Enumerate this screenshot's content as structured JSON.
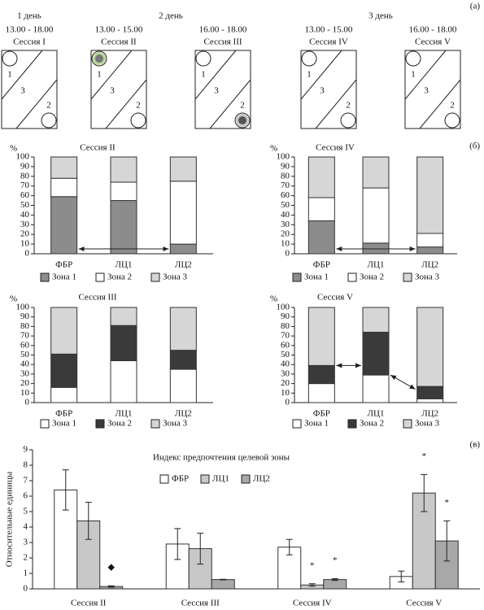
{
  "panel_labels": [
    "(а)",
    "(б)",
    "(в)"
  ],
  "sessions_diagram": {
    "days": [
      "1 день",
      "2 день",
      "3 день"
    ],
    "times": [
      "13.00 - 18.00",
      "13.00 - 15.00",
      "16.00 - 18.00",
      "13.00 - 15.00",
      "16.00 - 18.00"
    ],
    "sessions": [
      "Сессия I",
      "Сессия II",
      "Сессия III",
      "Сессия IV",
      "Сессия V"
    ],
    "zone_labels": [
      "1",
      "3",
      "2"
    ]
  },
  "chart_data": [
    {
      "type": "stacked_bar",
      "title": "Сессия II",
      "y_label": "%",
      "categories": [
        "ФБР",
        "ЛЦ1",
        "ЛЦ2"
      ],
      "series": [
        {
          "name": "Зона 1",
          "color": "#8c8c8c",
          "values": [
            59,
            55,
            10
          ]
        },
        {
          "name": "Зона 2",
          "color": "#ffffff",
          "values": [
            19,
            19,
            65
          ]
        },
        {
          "name": "Зона 3",
          "color": "#d6d6d6",
          "values": [
            22,
            26,
            25
          ]
        }
      ],
      "ylim": [
        0,
        100
      ],
      "yticks": [
        0,
        10,
        20,
        30,
        40,
        50,
        60,
        70,
        80,
        90,
        100
      ]
    },
    {
      "type": "stacked_bar",
      "title": "Сессия IV",
      "y_label": "%",
      "categories": [
        "ФБР",
        "ЛЦ1",
        "ЛЦ2"
      ],
      "series": [
        {
          "name": "Зона 1",
          "color": "#8c8c8c",
          "values": [
            34,
            11,
            7
          ]
        },
        {
          "name": "Зона 2",
          "color": "#ffffff",
          "values": [
            24,
            57,
            14
          ]
        },
        {
          "name": "Зона 3",
          "color": "#d6d6d6",
          "values": [
            42,
            32,
            79
          ]
        }
      ],
      "ylim": [
        0,
        100
      ],
      "yticks": [
        0,
        10,
        20,
        30,
        40,
        50,
        60,
        70,
        80,
        90,
        100
      ]
    },
    {
      "type": "stacked_bar",
      "title": "Сессия III",
      "y_label": "%",
      "categories": [
        "ФБР",
        "ЛЦ1",
        "ЛЦ2"
      ],
      "series": [
        {
          "name": "Зона 1",
          "color": "#ffffff",
          "values": [
            16,
            44,
            35
          ]
        },
        {
          "name": "Зона 2",
          "color": "#3a3a3a",
          "values": [
            35,
            37,
            20
          ]
        },
        {
          "name": "Зона 3",
          "color": "#d6d6d6",
          "values": [
            49,
            19,
            45
          ]
        }
      ],
      "ylim": [
        0,
        100
      ],
      "yticks": [
        0,
        10,
        20,
        30,
        40,
        50,
        60,
        70,
        80,
        90,
        100
      ]
    },
    {
      "type": "stacked_bar",
      "title": "Сессия V",
      "y_label": "%",
      "categories": [
        "ФБР",
        "ЛЦ1",
        "ЛЦ2"
      ],
      "series": [
        {
          "name": "Зона 1",
          "color": "#ffffff",
          "values": [
            20,
            29,
            4
          ]
        },
        {
          "name": "Зона 2",
          "color": "#3a3a3a",
          "values": [
            19,
            45,
            13
          ]
        },
        {
          "name": "Зона 3",
          "color": "#d6d6d6",
          "values": [
            61,
            26,
            83
          ]
        }
      ],
      "ylim": [
        0,
        100
      ],
      "yticks": [
        0,
        10,
        20,
        30,
        40,
        50,
        60,
        70,
        80,
        90,
        100
      ]
    },
    {
      "type": "grouped_bar",
      "title": "Индекс предпочтения целевой зоны",
      "y_label": "Относительные единицы",
      "categories": [
        "Сессия II",
        "Сессия III",
        "Сессия IV",
        "Сессия V"
      ],
      "series": [
        {
          "name": "ФБР",
          "color": "#ffffff",
          "values": [
            6.4,
            2.9,
            2.7,
            0.8
          ],
          "errors": [
            1.3,
            1.0,
            0.5,
            0.35
          ]
        },
        {
          "name": "ЛЦ1",
          "color": "#c8c8c8",
          "values": [
            4.4,
            2.6,
            0.25,
            6.2
          ],
          "errors": [
            1.2,
            1.0,
            0.08,
            1.2
          ]
        },
        {
          "name": "ЛЦ2",
          "color": "#a8a8a8",
          "values": [
            0.15,
            0.6,
            0.6,
            3.1
          ],
          "errors": [
            0.05,
            0.02,
            0.06,
            1.3
          ]
        }
      ],
      "annotations": [
        {
          "text": "◆",
          "category": "Сессия II",
          "series": "ЛЦ2"
        },
        {
          "text": "*",
          "category": "Сессия IV",
          "series": "ЛЦ1"
        },
        {
          "text": "*",
          "category": "Сессия IV",
          "series": "ЛЦ2"
        },
        {
          "text": "*",
          "category": "Сессия V",
          "series": "ЛЦ1"
        },
        {
          "text": "*",
          "category": "Сессия V",
          "series": "ЛЦ2"
        }
      ],
      "ylim": [
        0,
        9
      ],
      "yticks": [
        0,
        1,
        2,
        3,
        4,
        5,
        6,
        7,
        8,
        9
      ]
    }
  ]
}
